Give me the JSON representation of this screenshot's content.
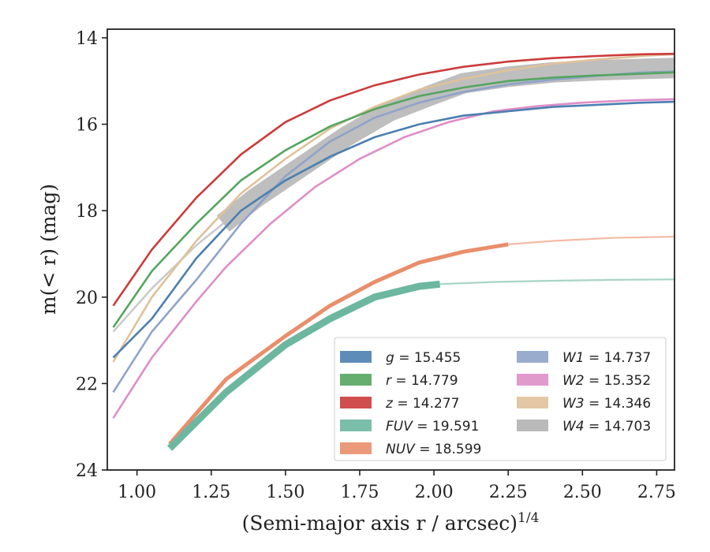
{
  "chart_data": {
    "type": "line",
    "title": "",
    "xlabel": "(Semi-major axis r / arcsec)",
    "xlabel_sup": "1/4",
    "ylabel": "m(< r) (mag)",
    "xlim": [
      0.9,
      2.81
    ],
    "ylim": [
      24,
      13.8
    ],
    "y_inverted": true,
    "grid": false,
    "legend_position": "lower-right",
    "x_ticks": [
      "1.00",
      "1.25",
      "1.50",
      "1.75",
      "2.00",
      "2.25",
      "2.50",
      "2.75"
    ],
    "y_ticks": [
      "14",
      "16",
      "18",
      "20",
      "22",
      "24"
    ],
    "series": [
      {
        "name": "g",
        "value": "15.455",
        "label": "g = 15.455",
        "color": "#4c7fb0",
        "x": [
          0.92,
          1.05,
          1.2,
          1.35,
          1.5,
          1.65,
          1.8,
          1.95,
          2.1,
          2.25,
          2.4,
          2.55,
          2.7,
          2.81
        ],
        "y": [
          21.4,
          20.5,
          19.1,
          18.0,
          17.3,
          16.75,
          16.3,
          16.0,
          15.8,
          15.7,
          15.6,
          15.55,
          15.5,
          15.48
        ]
      },
      {
        "name": "r",
        "value": "14.779",
        "label": "r = 14.779",
        "color": "#55a55f",
        "x": [
          0.92,
          1.05,
          1.2,
          1.35,
          1.5,
          1.65,
          1.8,
          1.95,
          2.1,
          2.25,
          2.4,
          2.55,
          2.7,
          2.81
        ],
        "y": [
          20.7,
          19.4,
          18.3,
          17.3,
          16.6,
          16.05,
          15.65,
          15.35,
          15.15,
          15.0,
          14.92,
          14.87,
          14.83,
          14.8
        ]
      },
      {
        "name": "z",
        "value": "14.277",
        "label": "z = 14.277",
        "color": "#cc3b3b",
        "x": [
          0.92,
          1.05,
          1.2,
          1.35,
          1.5,
          1.65,
          1.8,
          1.95,
          2.1,
          2.25,
          2.4,
          2.55,
          2.7,
          2.81
        ],
        "y": [
          20.2,
          18.9,
          17.7,
          16.7,
          15.95,
          15.45,
          15.1,
          14.85,
          14.67,
          14.55,
          14.47,
          14.42,
          14.38,
          14.37
        ]
      },
      {
        "name": "FUV",
        "value": "19.591",
        "label": "FUV = 19.591",
        "color": "#6db7a0",
        "x": [
          1.11,
          1.3,
          1.5,
          1.65,
          1.8,
          1.95,
          2.02,
          2.2,
          2.4,
          2.6,
          2.81
        ],
        "y": [
          23.5,
          22.2,
          21.1,
          20.5,
          20.0,
          19.75,
          19.7,
          19.65,
          19.62,
          19.6,
          19.59
        ],
        "drawn_to": 2.02
      },
      {
        "name": "NUV",
        "value": "18.599",
        "label": "NUV = 18.599",
        "color": "#e98e6b",
        "x": [
          1.11,
          1.3,
          1.5,
          1.65,
          1.8,
          1.95,
          2.1,
          2.25,
          2.4,
          2.6,
          2.81
        ],
        "y": [
          23.4,
          21.9,
          20.9,
          20.2,
          19.65,
          19.2,
          18.95,
          18.78,
          18.7,
          18.63,
          18.6
        ],
        "drawn_to": 2.25
      },
      {
        "name": "W1",
        "value": "14.737",
        "label": "W1 = 14.737",
        "color": "#8fa3c9",
        "x": [
          0.92,
          1.05,
          1.2,
          1.35,
          1.5,
          1.65,
          1.8,
          1.95,
          2.1,
          2.25,
          2.4,
          2.55,
          2.7,
          2.81
        ],
        "y": [
          22.2,
          20.8,
          19.6,
          18.3,
          17.2,
          16.4,
          15.85,
          15.5,
          15.25,
          15.08,
          14.97,
          14.88,
          14.8,
          14.78
        ]
      },
      {
        "name": "W2",
        "value": "15.352",
        "label": "W2 = 15.352",
        "color": "#dd8fc7",
        "x": [
          0.92,
          1.05,
          1.2,
          1.3,
          1.45,
          1.6,
          1.75,
          1.9,
          2.05,
          2.2,
          2.35,
          2.5,
          2.65,
          2.81
        ],
        "y": [
          22.8,
          21.4,
          20.1,
          19.3,
          18.3,
          17.45,
          16.8,
          16.3,
          15.95,
          15.7,
          15.58,
          15.5,
          15.45,
          15.42
        ]
      },
      {
        "name": "W3",
        "value": "14.346",
        "label": "W3 = 14.346",
        "color": "#dfc29a",
        "x": [
          0.92,
          1.05,
          1.2,
          1.35,
          1.5,
          1.65,
          1.8,
          1.95,
          2.1,
          2.25,
          2.4,
          2.55,
          2.7,
          2.81
        ],
        "y": [
          21.5,
          20.0,
          18.7,
          17.6,
          16.8,
          16.1,
          15.6,
          15.2,
          14.95,
          14.75,
          14.6,
          14.5,
          14.42,
          14.38
        ]
      },
      {
        "name": "W4",
        "value": "14.703",
        "label": "W4 = 14.703",
        "color": "#b3b3b3",
        "x": [
          0.92,
          1.05,
          1.2,
          1.29,
          1.4,
          1.55,
          1.7,
          1.85,
          2.0,
          2.1,
          2.25,
          2.4,
          2.55,
          2.7,
          2.81
        ],
        "y": [
          20.8,
          19.8,
          18.8,
          18.3,
          17.7,
          17.0,
          16.3,
          15.7,
          15.3,
          15.05,
          14.9,
          14.8,
          14.75,
          14.72,
          14.7
        ],
        "band_from": 1.29
      }
    ]
  }
}
